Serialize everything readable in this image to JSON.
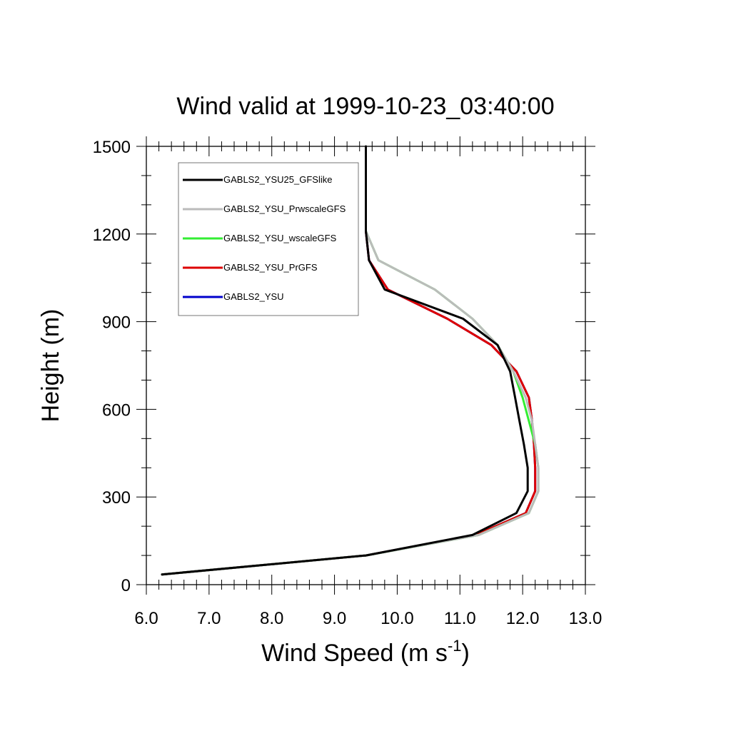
{
  "chart_data": {
    "type": "line",
    "title": "Wind valid at 1999-10-23_03:40:00",
    "xlabel": "Wind Speed (m s",
    "xlabel_superscript": "-1",
    "xlabel_suffix": ")",
    "ylabel": "Height (m)",
    "xlim": [
      6.0,
      13.0
    ],
    "ylim": [
      0,
      1500
    ],
    "x_ticks": [
      6.0,
      7.0,
      8.0,
      9.0,
      10.0,
      11.0,
      12.0,
      13.0
    ],
    "x_tick_labels": [
      "6.0",
      "7.0",
      "8.0",
      "9.0",
      "10.0",
      "11.0",
      "12.0",
      "13.0"
    ],
    "y_ticks": [
      0,
      300,
      600,
      900,
      1200,
      1500
    ],
    "y_tick_labels": [
      "0",
      "300",
      "600",
      "900",
      "1200",
      "1500"
    ],
    "grid": false,
    "legend_position": "top-left",
    "series": [
      {
        "name": "GABLS2_YSU",
        "color": "#0000cc",
        "x": [
          6.25,
          9.5,
          11.25,
          12.05,
          12.2,
          12.2,
          12.18,
          12.15,
          12.1,
          11.9,
          11.5,
          10.8,
          9.85,
          9.55,
          9.5,
          9.5
        ],
        "y": [
          35,
          100,
          170,
          245,
          320,
          400,
          480,
          560,
          640,
          730,
          820,
          910,
          1010,
          1110,
          1210,
          1300
        ]
      },
      {
        "name": "GABLS2_YSU_PrGFS",
        "color": "#dd0000",
        "x": [
          6.25,
          9.5,
          11.25,
          12.05,
          12.2,
          12.2,
          12.18,
          12.15,
          12.1,
          11.9,
          11.5,
          10.8,
          9.85,
          9.55,
          9.5,
          9.5
        ],
        "y": [
          35,
          100,
          170,
          245,
          320,
          400,
          480,
          560,
          640,
          730,
          820,
          910,
          1010,
          1110,
          1210,
          1300
        ]
      },
      {
        "name": "GABLS2_YSU_wscaleGFS",
        "color": "#33ee33",
        "x": [
          6.25,
          9.5,
          11.3,
          12.1,
          12.25,
          12.25,
          12.2,
          12.1,
          12.0,
          11.85,
          11.6,
          11.2,
          10.6,
          9.7,
          9.5,
          9.5
        ],
        "y": [
          35,
          100,
          170,
          245,
          320,
          400,
          480,
          560,
          640,
          730,
          820,
          910,
          1010,
          1110,
          1210,
          1300
        ]
      },
      {
        "name": "GABLS2_YSU_PrwscaleGFS",
        "color": "#bbbbbb",
        "x": [
          6.25,
          9.5,
          11.3,
          12.1,
          12.25,
          12.25,
          12.2,
          12.15,
          12.05,
          11.85,
          11.6,
          11.2,
          10.6,
          9.7,
          9.5,
          9.5
        ],
        "y": [
          35,
          100,
          170,
          245,
          320,
          400,
          480,
          560,
          640,
          730,
          820,
          910,
          1010,
          1110,
          1210,
          1300
        ]
      },
      {
        "name": "GABLS2_YSU25_GFSlike",
        "color": "#000000",
        "x": [
          6.25,
          9.5,
          11.2,
          11.9,
          12.08,
          12.08,
          12.02,
          11.95,
          11.88,
          11.8,
          11.6,
          11.05,
          9.8,
          9.55,
          9.5,
          9.5,
          9.5
        ],
        "y": [
          35,
          100,
          170,
          245,
          320,
          400,
          480,
          560,
          640,
          730,
          820,
          910,
          1010,
          1110,
          1210,
          1300,
          1500
        ]
      }
    ],
    "legend_order": [
      "GABLS2_YSU25_GFSlike",
      "GABLS2_YSU_PrwscaleGFS",
      "GABLS2_YSU_wscaleGFS",
      "GABLS2_YSU_PrGFS",
      "GABLS2_YSU"
    ]
  }
}
